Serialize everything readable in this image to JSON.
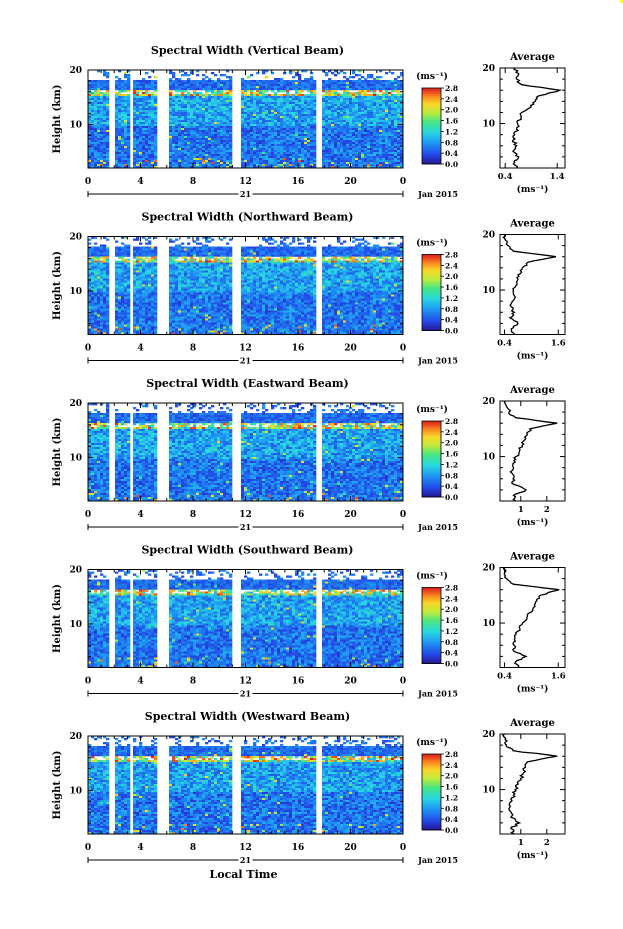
{
  "figure": {
    "xlabel": "Local Time",
    "date_label": "Jan 2015",
    "day_label": "21",
    "colorbar_unit": "(ms⁻¹)",
    "avg_title": "Average",
    "avg_xunit": "(ms⁻¹)"
  },
  "chart_data": [
    {
      "type": "heatmap",
      "title": "Spectral Width (Vertical Beam)",
      "ylabel": "Height (km)",
      "x_ticks": [
        "0",
        "4",
        "8",
        "12",
        "16",
        "20",
        "0"
      ],
      "y_ticks": [
        "10",
        "20"
      ],
      "xlim": [
        0,
        24
      ],
      "ylim": [
        2,
        20
      ],
      "colorbar_ticks": [
        "0.0",
        "0.4",
        "0.8",
        "1.2",
        "1.6",
        "2.0",
        "2.4",
        "2.8"
      ],
      "colorbar_range": [
        0,
        2.8
      ],
      "gaps_hours": [
        [
          1.5,
          2.0
        ],
        [
          3.0,
          3.4
        ],
        [
          5.2,
          6.0
        ],
        [
          10.9,
          11.6
        ],
        [
          17.3,
          17.8
        ]
      ],
      "average": {
        "xticks": [
          0.4,
          1.4
        ],
        "xtick_labels": [
          "0.4",
          "1.4"
        ],
        "xlim": [
          0.3,
          1.55
        ],
        "heights": [
          2,
          3,
          4,
          5,
          6,
          7,
          8,
          9,
          10,
          11,
          12,
          13,
          14,
          15,
          16,
          17,
          18,
          19,
          20
        ],
        "values": [
          0.62,
          0.58,
          0.66,
          0.55,
          0.62,
          0.55,
          0.58,
          0.62,
          0.64,
          0.7,
          0.72,
          0.9,
          0.98,
          1.05,
          1.45,
          0.72,
          0.62,
          0.66,
          0.58
        ]
      }
    },
    {
      "type": "heatmap",
      "title": "Spectral Width (Northward Beam)",
      "ylabel": "Height (km)",
      "x_ticks": [
        "0",
        "4",
        "8",
        "12",
        "16",
        "20",
        "0"
      ],
      "y_ticks": [
        "10",
        "20"
      ],
      "xlim": [
        0,
        24
      ],
      "ylim": [
        2,
        20
      ],
      "colorbar_ticks": [
        "0.0",
        "0.4",
        "0.8",
        "1.2",
        "1.6",
        "2.0",
        "2.4",
        "2.8"
      ],
      "colorbar_range": [
        0,
        2.8
      ],
      "gaps_hours": [
        [
          1.5,
          2.0
        ],
        [
          3.0,
          3.4
        ],
        [
          5.2,
          6.0
        ],
        [
          10.9,
          11.6
        ],
        [
          17.3,
          17.8
        ]
      ],
      "average": {
        "xticks": [
          0.4,
          1.6
        ],
        "xtick_labels": [
          "0.4",
          "1.6"
        ],
        "xlim": [
          0.3,
          1.75
        ],
        "heights": [
          2,
          3,
          4,
          5,
          6,
          7,
          8,
          9,
          10,
          11,
          12,
          13,
          14,
          15,
          16,
          17,
          18,
          19,
          20
        ],
        "values": [
          0.62,
          0.55,
          0.7,
          0.52,
          0.62,
          0.55,
          0.58,
          0.62,
          0.6,
          0.68,
          0.7,
          0.76,
          0.8,
          0.92,
          1.55,
          0.6,
          0.48,
          0.42,
          0.4
        ]
      }
    },
    {
      "type": "heatmap",
      "title": "Spectral Width (Eastward Beam)",
      "ylabel": "Height (km)",
      "x_ticks": [
        "0",
        "4",
        "8",
        "12",
        "16",
        "20",
        "0"
      ],
      "y_ticks": [
        "10",
        "20"
      ],
      "xlim": [
        0,
        24
      ],
      "ylim": [
        2,
        20
      ],
      "colorbar_ticks": [
        "0.0",
        "0.4",
        "0.8",
        "1.2",
        "1.6",
        "2.0",
        "2.4",
        "2.8"
      ],
      "colorbar_range": [
        0,
        2.8
      ],
      "gaps_hours": [
        [
          1.5,
          2.0
        ],
        [
          3.0,
          3.4
        ],
        [
          5.2,
          6.0
        ],
        [
          10.9,
          11.6
        ],
        [
          17.3,
          17.8
        ]
      ],
      "average": {
        "xticks": [
          1,
          2
        ],
        "xtick_labels": [
          "1",
          "2"
        ],
        "xlim": [
          0.2,
          2.7
        ],
        "heights": [
          2,
          3,
          4,
          5,
          6,
          7,
          8,
          9,
          10,
          11,
          12,
          13,
          14,
          15,
          16,
          17,
          18,
          19,
          20
        ],
        "values": [
          0.8,
          0.72,
          1.2,
          0.72,
          0.7,
          0.66,
          0.72,
          0.78,
          0.82,
          0.95,
          1.05,
          1.15,
          1.25,
          1.35,
          2.4,
          0.8,
          0.55,
          0.45,
          0.4
        ]
      }
    },
    {
      "type": "heatmap",
      "title": "Spectral Width (Southward Beam)",
      "ylabel": "Height (km)",
      "x_ticks": [
        "0",
        "4",
        "8",
        "12",
        "16",
        "20",
        "0"
      ],
      "y_ticks": [
        "10",
        "20"
      ],
      "xlim": [
        0,
        24
      ],
      "ylim": [
        2,
        20
      ],
      "colorbar_ticks": [
        "0.0",
        "0.4",
        "0.8",
        "1.2",
        "1.6",
        "2.0",
        "2.4",
        "2.8"
      ],
      "colorbar_range": [
        0,
        2.8
      ],
      "gaps_hours": [
        [
          1.5,
          2.0
        ],
        [
          3.0,
          3.4
        ],
        [
          5.2,
          6.0
        ],
        [
          10.9,
          11.6
        ],
        [
          17.3,
          17.8
        ]
      ],
      "average": {
        "xticks": [
          0.4,
          1.6
        ],
        "xtick_labels": [
          "0.4",
          "1.6"
        ],
        "xlim": [
          0.3,
          1.75
        ],
        "heights": [
          2,
          3,
          4,
          5,
          6,
          7,
          8,
          9,
          10,
          11,
          12,
          13,
          14,
          15,
          16,
          17,
          18,
          19,
          20
        ],
        "values": [
          0.7,
          0.65,
          0.88,
          0.6,
          0.62,
          0.62,
          0.66,
          0.74,
          0.8,
          0.9,
          1.0,
          1.08,
          1.12,
          1.2,
          1.62,
          0.6,
          0.45,
          0.4,
          0.38
        ]
      }
    },
    {
      "type": "heatmap",
      "title": "Spectral Width (Westward Beam)",
      "ylabel": "Height (km)",
      "x_ticks": [
        "0",
        "4",
        "8",
        "12",
        "16",
        "20",
        "0"
      ],
      "y_ticks": [
        "10",
        "20"
      ],
      "xlim": [
        0,
        24
      ],
      "ylim": [
        2,
        20
      ],
      "colorbar_ticks": [
        "0.0",
        "0.4",
        "0.8",
        "1.2",
        "1.6",
        "2.0",
        "2.4",
        "2.8"
      ],
      "colorbar_range": [
        0,
        2.8
      ],
      "gaps_hours": [
        [
          1.5,
          2.0
        ],
        [
          3.0,
          3.4
        ],
        [
          5.2,
          6.0
        ],
        [
          10.9,
          11.6
        ],
        [
          17.3,
          17.8
        ]
      ],
      "average": {
        "xticks": [
          1,
          2
        ],
        "xtick_labels": [
          "1",
          "2"
        ],
        "xlim": [
          0.2,
          2.7
        ],
        "heights": [
          2,
          3,
          4,
          5,
          6,
          7,
          8,
          9,
          10,
          11,
          12,
          13,
          14,
          15,
          16,
          17,
          18,
          19,
          20
        ],
        "values": [
          0.75,
          0.62,
          0.95,
          0.62,
          0.62,
          0.6,
          0.66,
          0.72,
          0.78,
          0.9,
          1.0,
          1.1,
          1.18,
          1.25,
          2.4,
          0.7,
          0.45,
          0.4,
          0.38
        ]
      }
    }
  ]
}
